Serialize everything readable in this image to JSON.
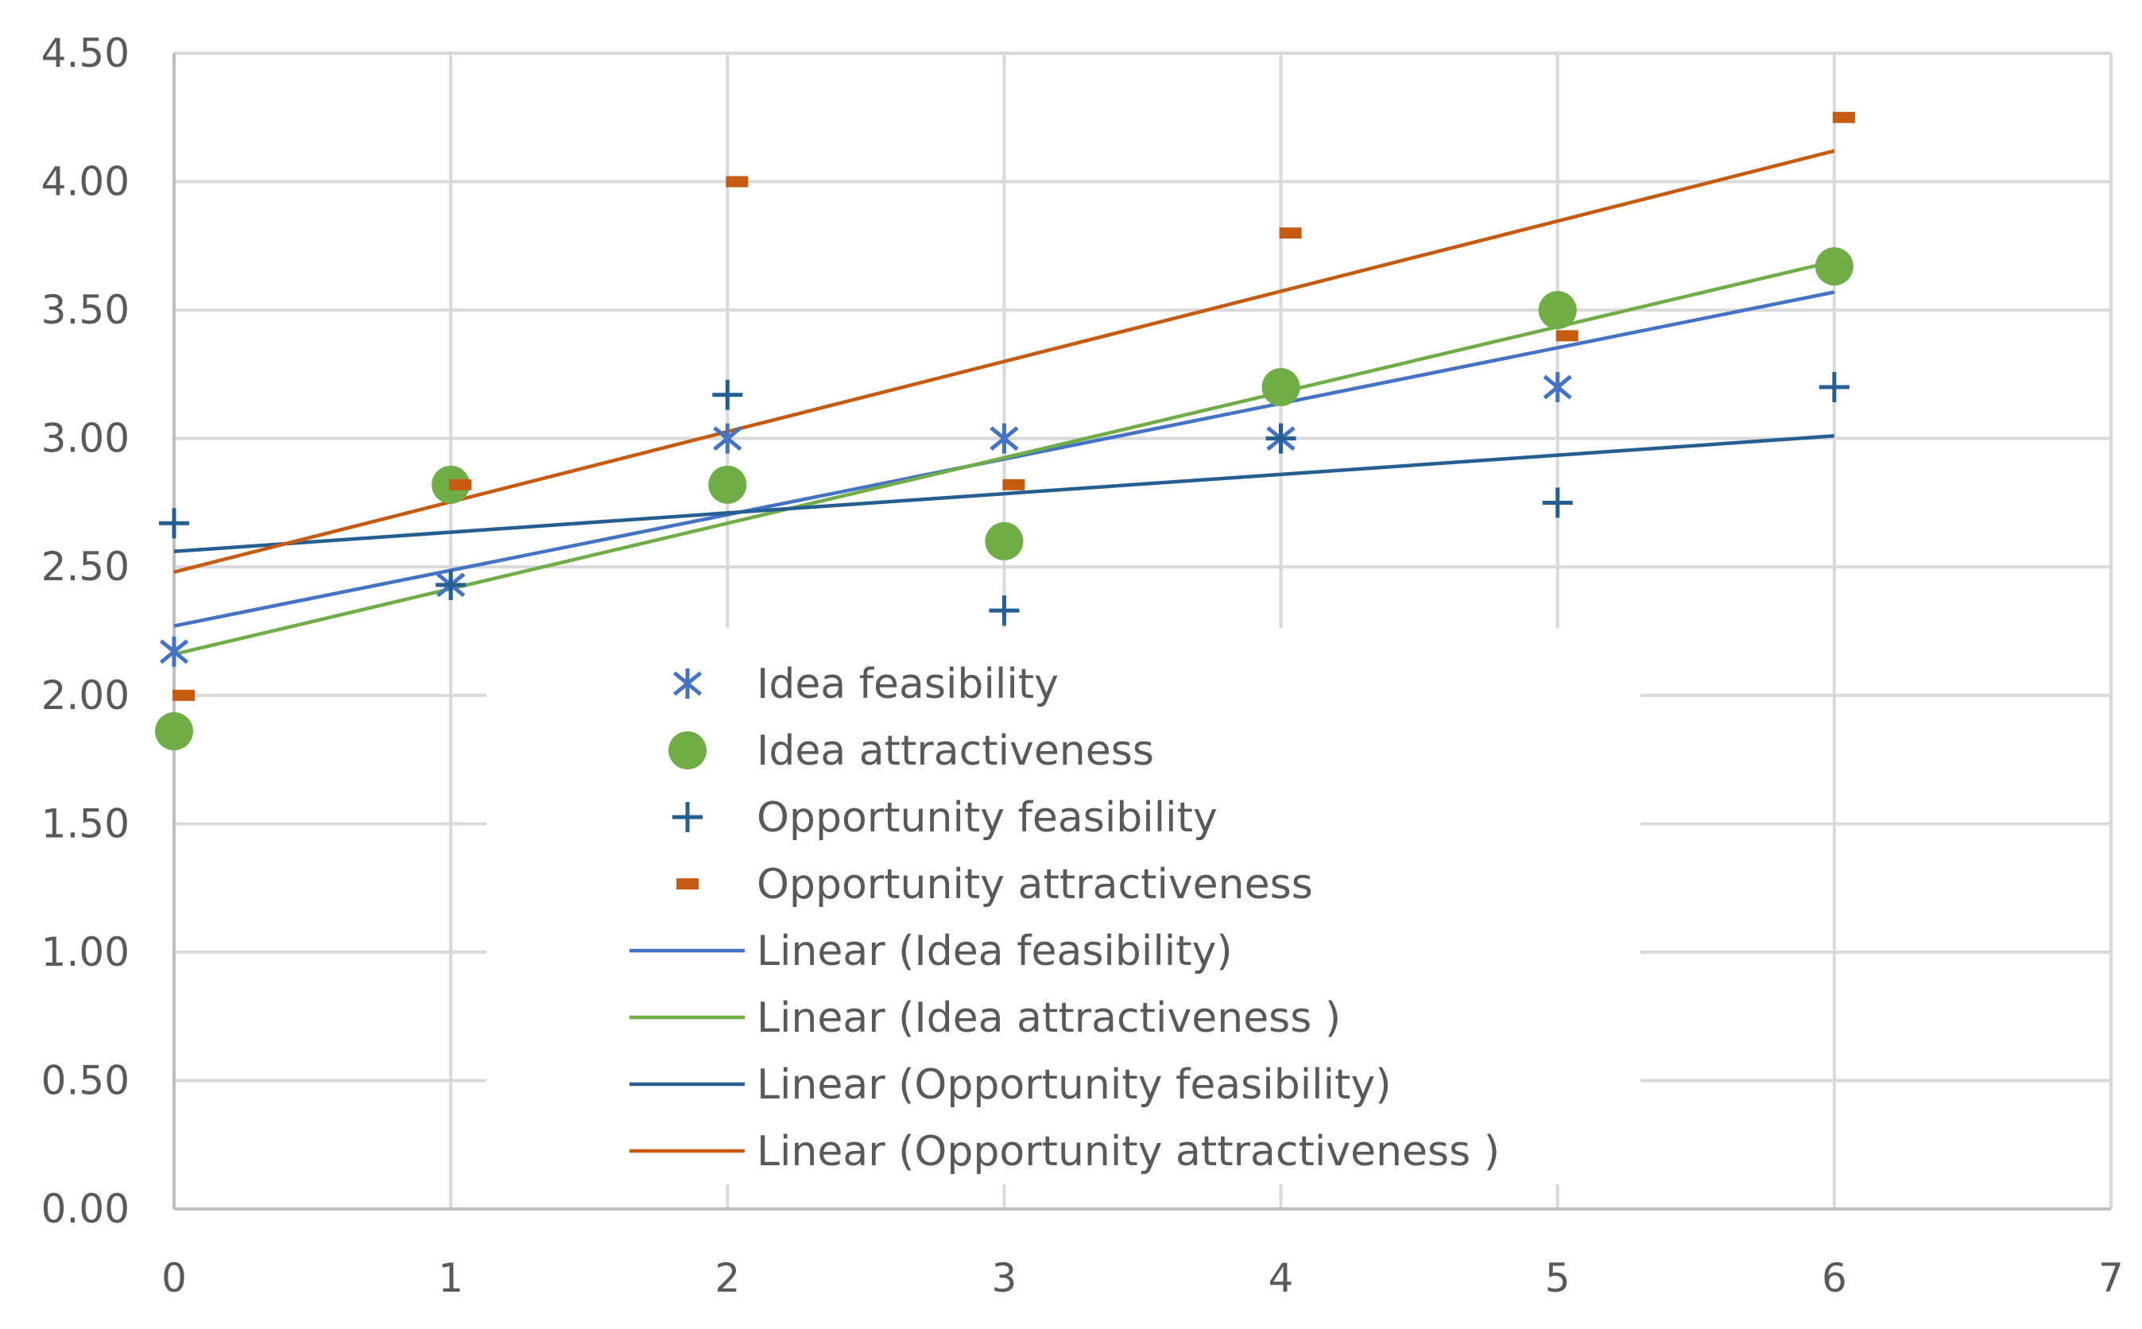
{
  "chart_data": {
    "type": "scatter",
    "title": "",
    "xlabel": "",
    "ylabel": "",
    "xlim": [
      0,
      7
    ],
    "ylim": [
      0,
      4.5
    ],
    "x_ticks": [
      "0",
      "1",
      "2",
      "3",
      "4",
      "5",
      "6",
      "7"
    ],
    "y_ticks": [
      "0.00",
      "0.50",
      "1.00",
      "1.50",
      "2.00",
      "2.50",
      "3.00",
      "3.50",
      "4.00",
      "4.50"
    ],
    "grid": true,
    "legend_position": "center-bottom",
    "series": [
      {
        "name": "Idea feasibility",
        "marker": "asterisk",
        "color": "#4472C4",
        "x": [
          0,
          1,
          2,
          3,
          4,
          5,
          6
        ],
        "y": [
          2.17,
          2.43,
          3.0,
          3.0,
          3.0,
          3.2,
          3.67
        ]
      },
      {
        "name": "Idea attractiveness",
        "marker": "circle",
        "color": "#70AD47",
        "x": [
          0,
          1,
          2,
          3,
          4,
          5,
          6
        ],
        "y": [
          1.86,
          2.82,
          2.82,
          2.6,
          3.2,
          3.5,
          3.67
        ]
      },
      {
        "name": "Opportunity feasibility",
        "marker": "plus",
        "color": "#255E91",
        "x": [
          0,
          1,
          2,
          3,
          4,
          5,
          6
        ],
        "y": [
          2.67,
          2.43,
          3.17,
          2.33,
          3.0,
          2.75,
          3.2
        ]
      },
      {
        "name": "Opportunity attractiveness",
        "marker": "dash",
        "color": "#C55A11",
        "x": [
          0,
          1,
          2,
          3,
          4,
          5,
          6
        ],
        "y": [
          2.0,
          2.82,
          4.0,
          2.82,
          3.8,
          3.4,
          4.25
        ]
      }
    ],
    "trendlines": [
      {
        "name": "Linear (Idea feasibility)",
        "color": "#4472C4",
        "x": [
          0,
          6
        ],
        "y": [
          2.27,
          3.57
        ]
      },
      {
        "name": "Linear (Idea attractiveness )",
        "color": "#70AD47",
        "x": [
          0,
          6
        ],
        "y": [
          2.16,
          3.69
        ]
      },
      {
        "name": "Linear (Opportunity feasibility)",
        "color": "#255E91",
        "x": [
          0,
          6
        ],
        "y": [
          2.56,
          3.01
        ]
      },
      {
        "name": "Linear (Opportunity attractiveness )",
        "color": "#C55A11",
        "x": [
          0,
          6
        ],
        "y": [
          2.48,
          4.12
        ]
      }
    ]
  }
}
